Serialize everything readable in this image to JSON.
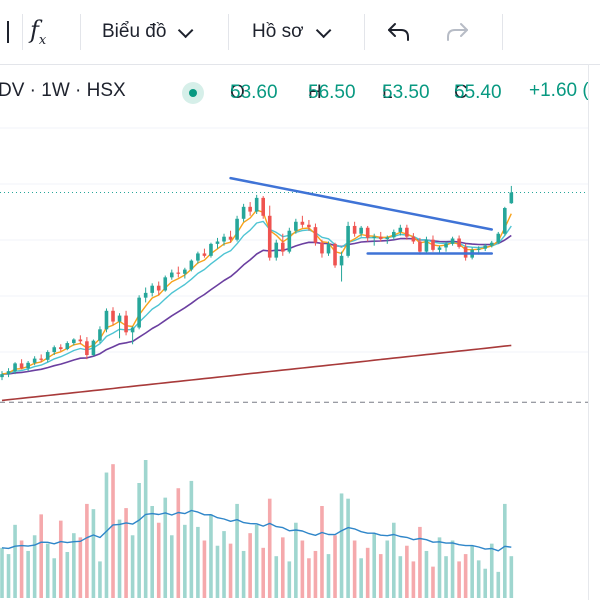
{
  "toolbar": {
    "fx_label": "f",
    "fx_sub": "x",
    "chart_menu": "Biểu đồ",
    "profile_menu": "Hồ sơ"
  },
  "legend": {
    "symbol": "DV · 1W · HSX",
    "open_label": "O",
    "open": "53.60",
    "high_label": "H",
    "high": "56.50",
    "low_label": "L",
    "low": "53.50",
    "close_label": "C",
    "close": "55.40",
    "change": "+1.60 (",
    "status_color": "#089981"
  },
  "colors": {
    "up": "#26a69a",
    "down": "#ef5350",
    "vol_up": "#9fd6cf",
    "vol_down": "#f5a9ac",
    "ma_fast": "#f7a21b",
    "ma_mid": "#4ec4d3",
    "ma_slow": "#6b3fa0",
    "ma_long": "#a83a3a",
    "trend": "#3f73d6",
    "vol_ma": "#2f86c9"
  },
  "chart_data": {
    "type": "candlestick",
    "timeframe": "1W",
    "exchange": "HSX",
    "y_range": [
      19,
      60
    ],
    "last_price": 55.4,
    "ohlc": [
      [
        24.5,
        25.5,
        24.0,
        25.0
      ],
      [
        25.0,
        26.0,
        24.5,
        25.5
      ],
      [
        25.5,
        27.0,
        25.0,
        26.8
      ],
      [
        26.8,
        27.5,
        25.8,
        26.0
      ],
      [
        26.0,
        27.2,
        25.5,
        26.9
      ],
      [
        26.9,
        28.0,
        26.5,
        27.6
      ],
      [
        27.6,
        28.3,
        27.0,
        27.4
      ],
      [
        27.4,
        29.0,
        27.0,
        28.7
      ],
      [
        28.7,
        29.8,
        28.2,
        29.5
      ],
      [
        29.5,
        30.0,
        28.8,
        29.2
      ],
      [
        29.2,
        30.5,
        29.0,
        30.2
      ],
      [
        30.2,
        31.0,
        29.8,
        30.8
      ],
      [
        30.8,
        31.5,
        30.0,
        30.5
      ],
      [
        30.5,
        31.2,
        27.5,
        28.2
      ],
      [
        28.2,
        30.8,
        28.0,
        30.6
      ],
      [
        30.6,
        33.0,
        30.2,
        32.5
      ],
      [
        32.5,
        36.0,
        32.0,
        35.6
      ],
      [
        35.6,
        36.2,
        33.2,
        33.8
      ],
      [
        33.8,
        35.2,
        31.0,
        34.8
      ],
      [
        34.8,
        35.6,
        31.5,
        32.0
      ],
      [
        32.0,
        33.0,
        30.0,
        32.8
      ],
      [
        32.8,
        38.2,
        32.5,
        37.8
      ],
      [
        37.8,
        39.5,
        37.0,
        38.6
      ],
      [
        38.6,
        40.2,
        38.0,
        39.8
      ],
      [
        39.8,
        40.5,
        38.2,
        39.0
      ],
      [
        39.0,
        41.5,
        38.8,
        41.2
      ],
      [
        41.2,
        42.5,
        40.8,
        42.0
      ],
      [
        42.0,
        43.0,
        41.2,
        41.8
      ],
      [
        41.8,
        42.8,
        41.0,
        42.5
      ],
      [
        42.5,
        44.2,
        42.2,
        44.0
      ],
      [
        44.0,
        45.5,
        43.5,
        45.2
      ],
      [
        45.2,
        46.0,
        44.5,
        44.8
      ],
      [
        44.8,
        47.0,
        44.5,
        46.8
      ],
      [
        46.8,
        47.8,
        46.0,
        47.2
      ],
      [
        47.2,
        48.5,
        46.5,
        48.0
      ],
      [
        48.0,
        49.0,
        47.0,
        47.5
      ],
      [
        47.5,
        51.5,
        47.2,
        51.0
      ],
      [
        51.0,
        53.5,
        50.5,
        53.0
      ],
      [
        53.0,
        53.8,
        51.5,
        52.2
      ],
      [
        52.2,
        55.0,
        51.8,
        54.5
      ],
      [
        54.5,
        54.8,
        51.0,
        51.5
      ],
      [
        51.5,
        53.2,
        44.0,
        44.5
      ],
      [
        44.5,
        47.5,
        44.0,
        47.0
      ],
      [
        47.0,
        48.5,
        44.8,
        45.5
      ],
      [
        45.5,
        49.5,
        45.2,
        49.0
      ],
      [
        49.0,
        51.0,
        48.5,
        50.5
      ],
      [
        50.5,
        51.5,
        49.5,
        50.0
      ],
      [
        50.0,
        50.8,
        49.0,
        49.6
      ],
      [
        49.6,
        50.2,
        46.5,
        47.0
      ],
      [
        47.0,
        47.5,
        44.5,
        45.2
      ],
      [
        45.2,
        47.2,
        44.8,
        46.8
      ],
      [
        46.8,
        47.0,
        42.8,
        43.2
      ],
      [
        43.2,
        45.5,
        40.5,
        44.8
      ],
      [
        44.8,
        50.5,
        44.5,
        49.8
      ],
      [
        49.8,
        50.5,
        48.0,
        48.5
      ],
      [
        48.5,
        49.8,
        48.0,
        49.5
      ],
      [
        49.5,
        49.8,
        47.2,
        47.8
      ],
      [
        47.8,
        48.5,
        46.5,
        48.0
      ],
      [
        48.0,
        48.8,
        47.2,
        47.6
      ],
      [
        47.6,
        48.2,
        46.8,
        47.9
      ],
      [
        47.9,
        49.2,
        47.5,
        48.8
      ],
      [
        48.8,
        50.0,
        48.2,
        49.5
      ],
      [
        49.5,
        50.0,
        47.5,
        48.0
      ],
      [
        48.0,
        48.6,
        46.8,
        47.2
      ],
      [
        47.2,
        47.8,
        45.0,
        45.5
      ],
      [
        45.5,
        48.0,
        45.2,
        47.5
      ],
      [
        47.5,
        48.2,
        45.5,
        45.8
      ],
      [
        45.8,
        46.5,
        45.2,
        46.2
      ],
      [
        46.2,
        47.2,
        45.5,
        46.8
      ],
      [
        46.8,
        48.0,
        46.5,
        47.7
      ],
      [
        47.7,
        48.2,
        46.0,
        46.3
      ],
      [
        46.3,
        46.8,
        44.0,
        44.5
      ],
      [
        44.5,
        46.2,
        44.2,
        45.8
      ],
      [
        45.8,
        46.4,
        45.0,
        46.0
      ],
      [
        46.0,
        46.8,
        45.6,
        46.5
      ],
      [
        46.5,
        47.3,
        46.2,
        47.0
      ],
      [
        47.0,
        48.8,
        46.8,
        48.5
      ],
      [
        48.5,
        53.0,
        48.2,
        52.8
      ],
      [
        53.6,
        56.5,
        53.5,
        55.4
      ]
    ],
    "volume": [
      48,
      42,
      70,
      55,
      45,
      60,
      80,
      52,
      38,
      74,
      44,
      62,
      58,
      90,
      85,
      35,
      120,
      128,
      75,
      86,
      60,
      110,
      132,
      88,
      72,
      96,
      60,
      105,
      70,
      112,
      68,
      55,
      80,
      50,
      64,
      52,
      90,
      45,
      62,
      70,
      48,
      95,
      40,
      58,
      35,
      72,
      55,
      38,
      45,
      88,
      42,
      60,
      100,
      95,
      55,
      38,
      48,
      62,
      42,
      55,
      72,
      40,
      50,
      35,
      68,
      45,
      30,
      58,
      40,
      55,
      35,
      42,
      50,
      36,
      28,
      52,
      25,
      90,
      40
    ],
    "annotations": [
      {
        "type": "descending-trendline",
        "from": [
          35,
          57.8
        ],
        "to": [
          75,
          49.2
        ]
      },
      {
        "type": "support-line",
        "from": [
          56,
          45.2
        ],
        "to": [
          75,
          45.2
        ]
      },
      {
        "type": "price-line",
        "value": 55.4
      },
      {
        "type": "dashed-line",
        "value": 20.3
      }
    ]
  }
}
